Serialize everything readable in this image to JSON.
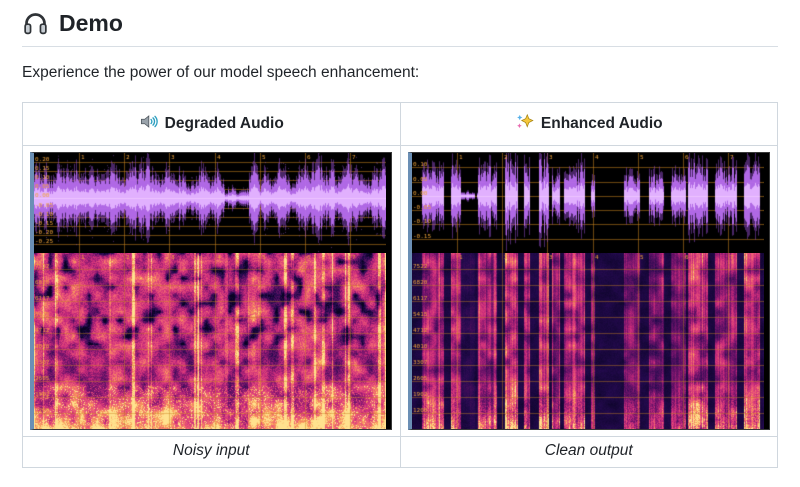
{
  "header": {
    "icon": "headphones-icon",
    "title": "Demo"
  },
  "intro": "Experience the power of our model speech enhancement:",
  "table": {
    "columns": [
      {
        "id": "degraded",
        "icon": "speaker-icon",
        "label": "Degraded Audio",
        "caption": "Noisy input"
      },
      {
        "id": "enhanced",
        "icon": "sparkles-icon",
        "label": "Enhanced Audio",
        "caption": "Clean output"
      }
    ]
  },
  "plots": {
    "degraded": {
      "style": "noisy",
      "waveform": {
        "x_ticks": [
          "1",
          "2",
          "3",
          "4",
          "5",
          "6",
          "7"
        ],
        "y_ticks": [
          "0.20",
          "0.15",
          "0.10",
          "0.05",
          "0.00",
          "-0.05",
          "-0.10",
          "-0.15",
          "-0.20",
          "-0.25"
        ]
      },
      "spectrogram": {
        "x_ticks": [
          "1",
          "2",
          "3",
          "4",
          "5",
          "6",
          "7"
        ],
        "y_ticks": [
          "7522",
          "6820",
          "6117",
          "5415",
          "4712",
          "4010",
          "3307",
          "2605",
          "1902",
          "1200"
        ]
      }
    },
    "enhanced": {
      "style": "clean",
      "waveform": {
        "x_ticks": [
          "1",
          "2",
          "3",
          "4",
          "5",
          "6",
          "7"
        ],
        "y_ticks": [
          "0.10",
          "0.05",
          "0.00",
          "-0.05",
          "-0.10",
          "-0.15"
        ]
      },
      "spectrogram": {
        "x_ticks": [
          "1",
          "2",
          "3",
          "4",
          "5",
          "6",
          "7"
        ],
        "y_ticks": [
          "7522",
          "6820",
          "6117",
          "5415",
          "4712",
          "4010",
          "3307",
          "2605",
          "1902",
          "1200"
        ]
      }
    }
  },
  "colors": {
    "grid": "#c8831e",
    "tick_text": "#f0a43a",
    "waveform": "#b469e6",
    "waveform_bright": "#e4b4ff",
    "panel_edge": "#6b8fb5",
    "panel_background": "#000000",
    "table_border": "#d0d7de",
    "heading_rule": "#d8dee4",
    "text": "#1f2328"
  }
}
